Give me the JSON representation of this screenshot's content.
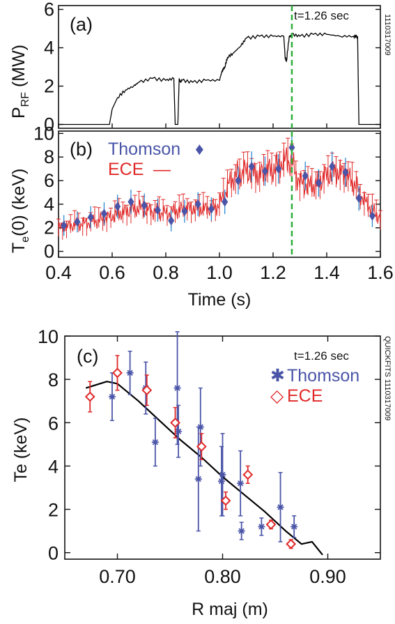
{
  "colors": {
    "thomson": "#4a55a8",
    "ece": "#e02828",
    "marker": "#1a7fd0",
    "guide": "#2eae3a",
    "fit": "#000000"
  },
  "chart_data": [
    {
      "type": "line",
      "panel": "(a)",
      "ylabel_main": "P",
      "ylabel_sub": "RF",
      "ylabel_unit": " (MW)",
      "annotation": "t=1.26 sec",
      "side_note": "1110317009",
      "xlim": [
        0.4,
        1.6
      ],
      "ylim": [
        -0.2,
        6.2
      ],
      "yticks": [
        0,
        2,
        4,
        6
      ],
      "vline_x": 1.27,
      "series": [
        {
          "x": [
            0.4,
            0.59,
            0.6,
            0.62,
            0.65,
            0.68,
            0.7,
            0.75,
            0.8,
            0.83,
            0.835,
            0.84,
            0.845,
            0.85,
            0.855,
            0.86,
            0.9,
            0.95,
            1.0,
            1.01,
            1.02,
            1.03,
            1.05,
            1.08,
            1.1,
            1.15,
            1.2,
            1.24,
            1.245,
            1.25,
            1.26,
            1.265,
            1.27,
            1.3,
            1.35,
            1.4,
            1.45,
            1.5,
            1.515,
            1.52,
            1.6
          ],
          "y": [
            0,
            0,
            0.8,
            1.4,
            1.8,
            2.0,
            2.2,
            2.4,
            2.3,
            2.4,
            0,
            0,
            0,
            2.4,
            2.2,
            2.3,
            2.2,
            2.3,
            2.3,
            2.8,
            3.0,
            3.5,
            3.7,
            4.1,
            4.5,
            4.6,
            4.6,
            4.6,
            3.5,
            3.3,
            4.6,
            4.6,
            4.7,
            4.6,
            4.7,
            4.7,
            4.6,
            4.6,
            4.6,
            0,
            0
          ]
        }
      ]
    },
    {
      "type": "line",
      "panel": "(b)",
      "ylabel_main": "T",
      "ylabel_sub": "e",
      "ylabel_unit": "(0) (keV)",
      "xlabel": "Time (s)",
      "xlim": [
        0.4,
        1.6
      ],
      "ylim": [
        -0.5,
        10.2
      ],
      "xticks": [
        0.4,
        0.6,
        0.8,
        1.0,
        1.2,
        1.4,
        1.6
      ],
      "yticks": [
        0,
        2,
        4,
        6,
        8,
        10
      ],
      "vline_x": 1.27,
      "legend": [
        {
          "label": "Thomson",
          "symbol": "♦"
        },
        {
          "label": "ECE",
          "symbol": "—"
        }
      ],
      "series": [
        {
          "name": "ECE",
          "x": [
            0.4,
            0.45,
            0.5,
            0.55,
            0.6,
            0.65,
            0.7,
            0.75,
            0.8,
            0.85,
            0.9,
            0.95,
            1.0,
            1.03,
            1.06,
            1.1,
            1.15,
            1.2,
            1.25,
            1.27,
            1.3,
            1.35,
            1.4,
            1.45,
            1.5,
            1.55,
            1.6
          ],
          "y": [
            2.0,
            2.2,
            2.4,
            2.6,
            3.0,
            3.4,
            3.7,
            3.4,
            3.2,
            3.5,
            3.7,
            3.6,
            3.9,
            5.5,
            6.5,
            6.8,
            6.5,
            7.0,
            7.8,
            7.5,
            5.8,
            5.5,
            6.5,
            6.8,
            5.8,
            4.0,
            2.8
          ]
        },
        {
          "name": "Thomson",
          "x": [
            0.42,
            0.47,
            0.52,
            0.57,
            0.62,
            0.67,
            0.72,
            0.77,
            0.82,
            0.87,
            0.92,
            0.97,
            1.02,
            1.07,
            1.12,
            1.17,
            1.22,
            1.27,
            1.32,
            1.37,
            1.42,
            1.47,
            1.52,
            1.57
          ],
          "y": [
            2.2,
            2.5,
            2.9,
            3.2,
            3.8,
            4.2,
            3.9,
            3.5,
            2.6,
            3.4,
            4.0,
            3.6,
            4.2,
            6.0,
            7.2,
            6.8,
            7.0,
            8.8,
            6.4,
            5.8,
            7.2,
            6.7,
            4.5,
            3.0
          ]
        }
      ]
    },
    {
      "type": "scatter",
      "panel": "(c)",
      "annotation": "t=1.26 sec",
      "side_note": "QUICKFITS 1110317009",
      "xlabel": "R maj (m)",
      "ylabel": "Te (keV)",
      "xlim": [
        0.65,
        0.95
      ],
      "ylim": [
        -0.3,
        10
      ],
      "xticks": [
        0.7,
        0.8,
        0.9
      ],
      "xtick_labels": [
        "0.70",
        "0.80",
        "0.90"
      ],
      "yticks": [
        0,
        2,
        4,
        6,
        8,
        10
      ],
      "legend": [
        {
          "label": "Thomson",
          "symbol": "✱"
        },
        {
          "label": "ECE",
          "symbol": "◇"
        }
      ],
      "series": [
        {
          "name": "Thomson",
          "x": [
            0.695,
            0.712,
            0.727,
            0.736,
            0.757,
            0.758,
            0.777,
            0.779,
            0.799,
            0.8,
            0.817,
            0.818,
            0.837,
            0.855,
            0.868
          ],
          "y": [
            7.2,
            8.3,
            7.6,
            5.1,
            7.6,
            5.6,
            3.4,
            5.8,
            3.3,
            3.6,
            3.2,
            1.0,
            1.2,
            2.1,
            1.2
          ],
          "err": [
            1.1,
            1.0,
            1.2,
            1.1,
            2.6,
            1.2,
            2.4,
            1.8,
            1.6,
            1.9,
            1.5,
            0.4,
            0.4,
            1.6,
            0.5
          ]
        },
        {
          "name": "ECE",
          "x": [
            0.674,
            0.7,
            0.728,
            0.755,
            0.78,
            0.803,
            0.824,
            0.846,
            0.865
          ],
          "y": [
            7.2,
            8.3,
            7.5,
            6.0,
            4.9,
            2.4,
            3.6,
            1.3,
            0.4
          ],
          "err": [
            0.7,
            0.8,
            0.7,
            0.7,
            0.6,
            0.4,
            0.4,
            0.2,
            0.2
          ]
        },
        {
          "name": "fit",
          "x": [
            0.67,
            0.69,
            0.7,
            0.72,
            0.74,
            0.76,
            0.78,
            0.8,
            0.82,
            0.84,
            0.86,
            0.87,
            0.875,
            0.885,
            0.895
          ],
          "y": [
            7.6,
            7.9,
            7.8,
            7.0,
            6.1,
            5.2,
            4.4,
            3.5,
            2.7,
            1.9,
            1.0,
            0.6,
            0.4,
            0.5,
            -0.1
          ]
        }
      ]
    }
  ]
}
